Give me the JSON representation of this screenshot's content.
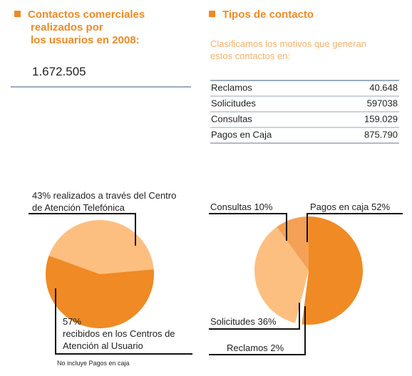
{
  "left": {
    "title_lines": [
      "Contactos comerciales",
      "realizados por",
      "los usuarios en 2008:"
    ],
    "total": "1.672.505",
    "footnote": "No incluye Pagos en caja"
  },
  "right": {
    "title": "Tipos de contacto",
    "subtitle_lines": [
      "Clasificamos los motivos que generan",
      "estos contactos en:"
    ],
    "table": {
      "rows": [
        [
          "Reclamos",
          "40.648"
        ],
        [
          "Solicitudes",
          "597038"
        ],
        [
          "Consultas",
          "159.029"
        ],
        [
          "Pagos en Caja",
          "875.790"
        ]
      ]
    }
  },
  "chart_data": [
    {
      "type": "pie",
      "categories": [
        "realizados a través del Centro de Atención Telefónica",
        "recibidos en los Centros de Atención al Usuario"
      ],
      "values": [
        43,
        57
      ],
      "value_labels": [
        "43%",
        "57%"
      ],
      "colors": [
        "#fdbf80",
        "#f08a24"
      ]
    },
    {
      "type": "pie",
      "categories": [
        "Pagos en caja",
        "Reclamos",
        "Solicitudes",
        "Consultas"
      ],
      "values": [
        52,
        2,
        36,
        10
      ],
      "value_labels": [
        "52%",
        "2%",
        "36%",
        "10%"
      ],
      "colors": [
        "#f08a24",
        "#ffffff",
        "#fdbf80",
        "#f4a056"
      ]
    }
  ]
}
